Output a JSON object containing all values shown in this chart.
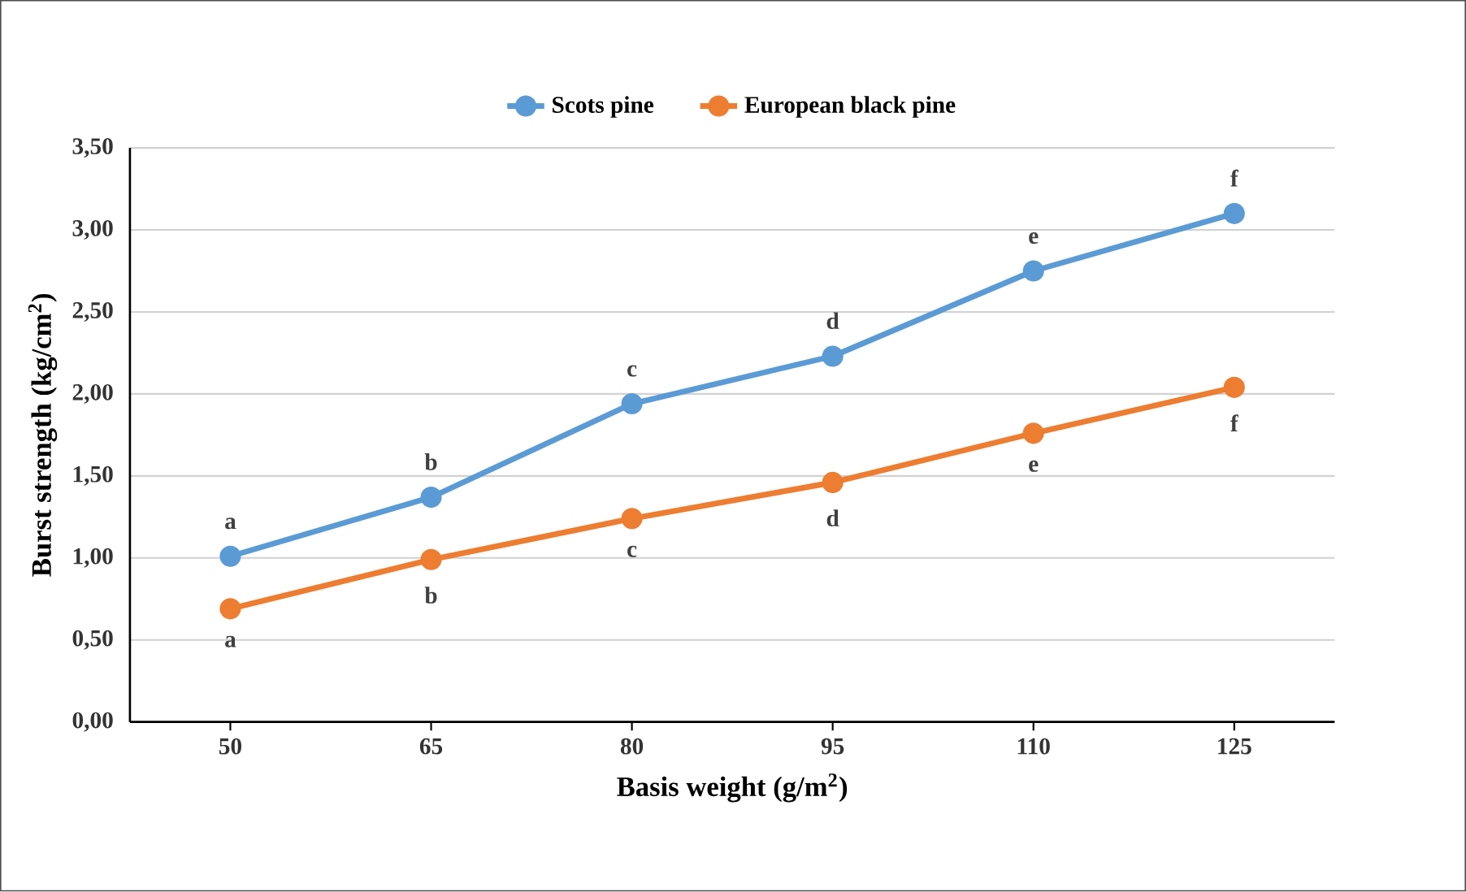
{
  "chart_data": {
    "type": "line",
    "xlabel": "Basis weight (g/m$^{2}$)",
    "ylabel": "Burst strength (kg/cm$^{2}$)",
    "categories": [
      "50",
      "65",
      "80",
      "95",
      "110",
      "125"
    ],
    "series": [
      {
        "name": "Scots pine",
        "color": "#5b9bd5",
        "values": [
          1.01,
          1.37,
          1.94,
          2.23,
          2.75,
          3.1
        ]
      },
      {
        "name": "European black pine",
        "color": "#ed7d31",
        "values": [
          0.69,
          0.99,
          1.24,
          1.46,
          1.76,
          2.04
        ]
      }
    ],
    "ylim": [
      0,
      3.5
    ],
    "yticks": [
      {
        "value": 0,
        "label": "0,00"
      },
      {
        "value": 0.5,
        "label": "0,50"
      },
      {
        "value": 1,
        "label": "1,00"
      },
      {
        "value": 1.5,
        "label": "1,50"
      },
      {
        "value": 2,
        "label": "2,00"
      },
      {
        "value": 2.5,
        "label": "2,50"
      },
      {
        "value": 3,
        "label": "3,00"
      },
      {
        "value": 3.5,
        "label": "3,50"
      }
    ],
    "grid": "y",
    "legend": "top",
    "marker": "circle",
    "line_style": "solid",
    "annotations": [
      {
        "text": "a",
        "x": "50",
        "y": 1.01
      },
      {
        "text": "b",
        "x": "65",
        "y": 1.37
      },
      {
        "text": "c",
        "x": "80",
        "y": 1.94
      },
      {
        "text": "d",
        "x": "95",
        "y": 2.23
      },
      {
        "text": "e",
        "x": "110",
        "y": 2.75
      },
      {
        "text": "f",
        "x": "125",
        "y": 3.1
      },
      {
        "text": "a",
        "x": "50",
        "y": 0.69
      },
      {
        "text": "b",
        "x": "65",
        "y": 0.99
      },
      {
        "text": "c",
        "x": "80",
        "y": 1.24
      },
      {
        "text": "d",
        "x": "95",
        "y": 1.46
      },
      {
        "text": "e",
        "x": "110",
        "y": 1.76
      },
      {
        "text": "f",
        "x": "125",
        "y": 2.04
      }
    ]
  }
}
